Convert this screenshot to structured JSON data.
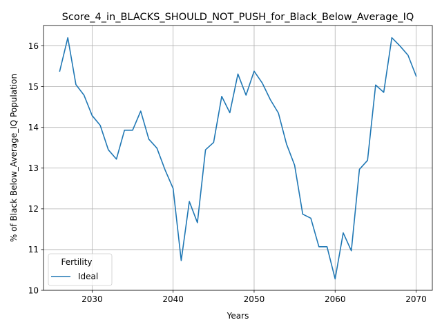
{
  "chart_data": {
    "type": "line",
    "title": "Score_4_in_BLACKS_SHOULD_NOT_PUSH_for_Black_Below_Average_IQ",
    "xlabel": "Years",
    "ylabel": "% of Black Below_Average_IQ Population",
    "xlim": [
      2024,
      2072
    ],
    "ylim": [
      10.0,
      16.5
    ],
    "xticks": [
      2030,
      2040,
      2050,
      2060,
      2070
    ],
    "yticks": [
      10,
      11,
      12,
      13,
      14,
      15,
      16
    ],
    "grid": true,
    "legend": {
      "title": "Fertility",
      "placement": "lower-left"
    },
    "series": [
      {
        "name": "Ideal",
        "color": "#1f77b4",
        "x": [
          2026,
          2027,
          2028,
          2029,
          2030,
          2031,
          2032,
          2033,
          2034,
          2035,
          2036,
          2037,
          2038,
          2039,
          2040,
          2041,
          2042,
          2043,
          2044,
          2045,
          2046,
          2047,
          2048,
          2049,
          2050,
          2051,
          2052,
          2053,
          2054,
          2055,
          2056,
          2057,
          2058,
          2059,
          2060,
          2061,
          2062,
          2063,
          2064,
          2065,
          2066,
          2067,
          2068,
          2069,
          2070
        ],
        "values": [
          15.38,
          16.2,
          15.05,
          14.79,
          14.29,
          14.05,
          13.45,
          13.22,
          13.93,
          13.93,
          14.4,
          13.71,
          13.49,
          12.96,
          12.5,
          10.73,
          12.18,
          11.66,
          13.45,
          13.63,
          14.76,
          14.36,
          15.31,
          14.79,
          15.38,
          15.09,
          14.68,
          14.35,
          13.59,
          13.07,
          11.87,
          11.77,
          11.07,
          11.07,
          10.28,
          11.41,
          10.97,
          12.97,
          13.19,
          15.04,
          14.86,
          16.2,
          16.0,
          15.77,
          15.26
        ]
      }
    ]
  }
}
